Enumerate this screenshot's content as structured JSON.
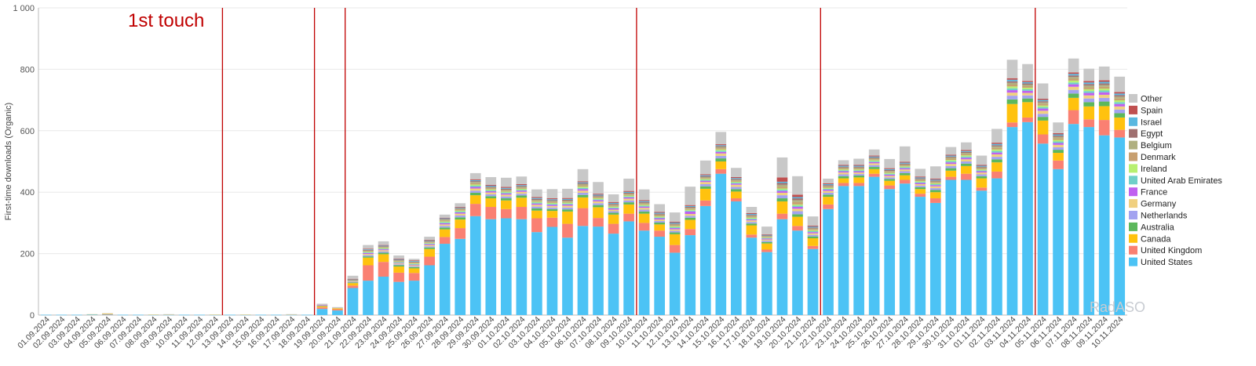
{
  "chart_data": {
    "type": "bar",
    "stacked": true,
    "ylabel": "First-time downloads (Organic)",
    "ylim": [
      0,
      1000
    ],
    "yticks": [
      "0",
      "200",
      "400",
      "600",
      "800",
      "1 000"
    ],
    "grid": true,
    "legend_position": "right",
    "annotation": "1st touch",
    "watermark": "RadASO",
    "event_markers": [
      "12.09.2024",
      "18.09.2024",
      "20.09.2024",
      "09.10.2024",
      "21.10.2024",
      "04.11.2024"
    ],
    "marker_color": "#c00000",
    "categories": [
      "01.09.2024",
      "02.09.2024",
      "03.09.2024",
      "04.09.2024",
      "05.09.2024",
      "06.09.2024",
      "07.09.2024",
      "08.09.2024",
      "09.09.2024",
      "10.09.2024",
      "11.09.2024",
      "12.09.2024",
      "13.09.2024",
      "14.09.2024",
      "15.09.2024",
      "16.09.2024",
      "17.09.2024",
      "18.09.2024",
      "19.09.2024",
      "20.09.2024",
      "21.09.2024",
      "22.09.2024",
      "23.09.2024",
      "24.09.2024",
      "25.09.2024",
      "26.09.2024",
      "27.09.2024",
      "28.09.2024",
      "29.09.2024",
      "30.09.2024",
      "01.10.2024",
      "02.10.2024",
      "03.10.2024",
      "04.10.2024",
      "05.10.2024",
      "06.10.2024",
      "07.10.2024",
      "08.10.2024",
      "09.10.2024",
      "10.10.2024",
      "11.10.2024",
      "12.10.2024",
      "13.10.2024",
      "14.10.2024",
      "15.10.2024",
      "16.10.2024",
      "17.10.2024",
      "18.10.2024",
      "19.10.2024",
      "20.10.2024",
      "21.10.2024",
      "22.10.2024",
      "23.10.2024",
      "24.10.2024",
      "25.10.2024",
      "26.10.2024",
      "27.10.2024",
      "28.10.2024",
      "29.10.2024",
      "30.10.2024",
      "31.10.2024",
      "01.11.2024",
      "02.11.2024",
      "03.11.2024",
      "04.11.2024",
      "05.11.2024",
      "06.11.2024",
      "07.11.2024",
      "08.11.2024",
      "09.11.2024",
      "10.11.2024"
    ],
    "series": [
      {
        "name": "United States",
        "color": "#4cc3f5",
        "values": [
          1,
          1,
          1,
          2,
          2,
          1,
          1,
          1,
          1,
          1,
          1,
          1,
          1,
          1,
          1,
          1,
          1,
          1,
          20,
          15,
          88,
          112,
          125,
          108,
          112,
          162,
          232,
          248,
          322,
          312,
          315,
          312,
          270,
          287,
          252,
          290,
          288,
          265,
          305,
          275,
          255,
          203,
          260,
          355,
          460,
          370,
          252,
          205,
          312,
          275,
          215,
          345,
          420,
          420,
          450,
          410,
          428,
          385,
          365,
          440,
          440,
          405,
          445,
          612,
          628,
          558,
          475,
          622,
          612,
          585,
          578
        ]
      },
      {
        "name": "United Kingdom",
        "color": "#fa8072",
        "values": [
          0,
          0,
          0,
          0,
          1,
          0,
          0,
          0,
          0,
          0,
          0,
          0,
          0,
          0,
          0,
          0,
          0,
          0,
          5,
          4,
          8,
          50,
          48,
          30,
          25,
          28,
          22,
          35,
          40,
          40,
          30,
          40,
          45,
          30,
          45,
          58,
          28,
          32,
          25,
          25,
          20,
          25,
          20,
          18,
          15,
          10,
          10,
          8,
          18,
          15,
          10,
          15,
          10,
          10,
          10,
          12,
          12,
          10,
          15,
          10,
          20,
          10,
          22,
          15,
          15,
          30,
          28,
          45,
          25,
          50,
          25
        ]
      },
      {
        "name": "Canada",
        "color": "#ffc20e",
        "values": [
          0,
          0,
          0,
          0,
          1,
          0,
          0,
          0,
          0,
          0,
          0,
          0,
          0,
          0,
          0,
          0,
          0,
          0,
          4,
          3,
          8,
          25,
          25,
          20,
          15,
          25,
          25,
          28,
          28,
          28,
          28,
          30,
          25,
          22,
          40,
          35,
          35,
          30,
          30,
          30,
          20,
          35,
          30,
          38,
          25,
          22,
          30,
          20,
          40,
          30,
          25,
          25,
          15,
          18,
          15,
          15,
          15,
          15,
          20,
          20,
          25,
          30,
          30,
          60,
          50,
          45,
          25,
          40,
          42,
          45,
          40
        ]
      },
      {
        "name": "Australia",
        "color": "#5cb85c",
        "values": [
          0,
          0,
          0,
          0,
          0,
          0,
          0,
          0,
          0,
          0,
          0,
          0,
          0,
          0,
          0,
          0,
          0,
          0,
          1,
          0,
          2,
          4,
          5,
          4,
          4,
          5,
          6,
          7,
          8,
          7,
          7,
          7,
          7,
          6,
          7,
          8,
          7,
          6,
          7,
          7,
          6,
          6,
          7,
          8,
          10,
          8,
          6,
          5,
          10,
          8,
          6,
          7,
          7,
          6,
          7,
          6,
          7,
          6,
          7,
          8,
          8,
          7,
          10,
          15,
          12,
          12,
          10,
          14,
          14,
          15,
          14
        ]
      },
      {
        "name": "Netherlands",
        "color": "#a3a3f0",
        "values": [
          0,
          0,
          0,
          0,
          0,
          0,
          0,
          0,
          0,
          0,
          0,
          0,
          0,
          0,
          0,
          0,
          0,
          0,
          1,
          0,
          2,
          4,
          4,
          3,
          3,
          4,
          5,
          6,
          7,
          6,
          6,
          6,
          6,
          5,
          6,
          7,
          6,
          5,
          6,
          6,
          5,
          5,
          6,
          7,
          8,
          7,
          5,
          4,
          10,
          10,
          5,
          6,
          6,
          5,
          6,
          5,
          6,
          5,
          6,
          7,
          7,
          6,
          8,
          12,
          10,
          10,
          8,
          12,
          12,
          12,
          12
        ]
      },
      {
        "name": "Germany",
        "color": "#f0d080",
        "values": [
          0,
          0,
          0,
          1,
          1,
          0,
          0,
          1,
          1,
          0,
          0,
          1,
          0,
          1,
          0,
          0,
          1,
          0,
          1,
          0,
          2,
          4,
          4,
          3,
          3,
          4,
          5,
          6,
          7,
          6,
          6,
          6,
          6,
          5,
          6,
          7,
          6,
          5,
          6,
          6,
          5,
          5,
          6,
          7,
          8,
          7,
          5,
          4,
          8,
          8,
          5,
          6,
          6,
          5,
          6,
          5,
          6,
          5,
          6,
          7,
          7,
          6,
          8,
          10,
          8,
          10,
          8,
          10,
          10,
          10,
          10
        ]
      },
      {
        "name": "France",
        "color": "#c060f0",
        "values": [
          0,
          0,
          0,
          0,
          0,
          0,
          0,
          0,
          0,
          0,
          0,
          0,
          0,
          0,
          0,
          0,
          0,
          0,
          1,
          0,
          1,
          3,
          3,
          2,
          2,
          3,
          4,
          4,
          5,
          4,
          4,
          4,
          4,
          4,
          4,
          5,
          4,
          4,
          4,
          4,
          4,
          4,
          8,
          4,
          5,
          4,
          3,
          3,
          6,
          6,
          4,
          4,
          4,
          4,
          4,
          4,
          4,
          4,
          4,
          5,
          5,
          4,
          6,
          8,
          7,
          7,
          6,
          8,
          8,
          8,
          8
        ]
      },
      {
        "name": "United Arab Emirates",
        "color": "#70cfc9",
        "values": [
          0,
          0,
          0,
          0,
          0,
          0,
          0,
          0,
          0,
          0,
          0,
          0,
          0,
          0,
          0,
          0,
          0,
          0,
          0,
          0,
          1,
          2,
          2,
          2,
          2,
          2,
          3,
          3,
          4,
          3,
          3,
          3,
          3,
          3,
          3,
          4,
          3,
          3,
          3,
          3,
          3,
          3,
          3,
          3,
          4,
          3,
          3,
          2,
          4,
          4,
          3,
          3,
          3,
          3,
          3,
          3,
          3,
          3,
          3,
          4,
          4,
          3,
          5,
          6,
          5,
          5,
          5,
          6,
          6,
          6,
          6
        ]
      },
      {
        "name": "Ireland",
        "color": "#b8f070",
        "values": [
          0,
          0,
          0,
          0,
          0,
          0,
          0,
          0,
          0,
          0,
          0,
          0,
          0,
          0,
          0,
          0,
          0,
          0,
          0,
          0,
          1,
          2,
          2,
          2,
          2,
          2,
          3,
          3,
          4,
          3,
          3,
          3,
          3,
          3,
          3,
          4,
          3,
          3,
          3,
          3,
          3,
          3,
          3,
          3,
          4,
          3,
          3,
          2,
          4,
          4,
          3,
          3,
          3,
          3,
          3,
          3,
          3,
          3,
          3,
          4,
          4,
          3,
          5,
          6,
          5,
          5,
          5,
          6,
          6,
          6,
          6
        ]
      },
      {
        "name": "Denmark",
        "color": "#c8a070",
        "values": [
          0,
          0,
          0,
          0,
          0,
          0,
          0,
          0,
          0,
          0,
          0,
          0,
          0,
          0,
          0,
          0,
          0,
          0,
          0,
          0,
          1,
          2,
          2,
          2,
          2,
          2,
          3,
          3,
          4,
          3,
          3,
          3,
          3,
          3,
          3,
          4,
          3,
          3,
          3,
          3,
          3,
          3,
          3,
          3,
          4,
          3,
          3,
          2,
          6,
          8,
          3,
          3,
          3,
          3,
          3,
          3,
          3,
          3,
          3,
          4,
          4,
          3,
          5,
          6,
          5,
          5,
          5,
          6,
          6,
          6,
          6
        ]
      },
      {
        "name": "Belgium",
        "color": "#b0b080",
        "values": [
          0,
          0,
          0,
          0,
          0,
          0,
          0,
          0,
          0,
          0,
          0,
          0,
          0,
          0,
          0,
          0,
          0,
          0,
          0,
          0,
          1,
          2,
          2,
          2,
          2,
          2,
          3,
          3,
          4,
          3,
          3,
          3,
          3,
          3,
          3,
          4,
          3,
          3,
          3,
          3,
          3,
          3,
          3,
          3,
          4,
          3,
          3,
          2,
          6,
          6,
          3,
          3,
          3,
          3,
          3,
          3,
          3,
          3,
          3,
          4,
          4,
          3,
          5,
          6,
          5,
          5,
          5,
          6,
          6,
          6,
          6
        ]
      },
      {
        "name": "Egypt",
        "color": "#a07070",
        "values": [
          0,
          0,
          0,
          0,
          0,
          0,
          0,
          0,
          0,
          0,
          0,
          0,
          0,
          0,
          0,
          0,
          0,
          0,
          0,
          0,
          1,
          2,
          2,
          2,
          2,
          2,
          2,
          2,
          3,
          3,
          3,
          3,
          3,
          3,
          3,
          3,
          3,
          3,
          3,
          3,
          3,
          3,
          3,
          3,
          3,
          3,
          3,
          2,
          6,
          6,
          3,
          3,
          3,
          3,
          3,
          3,
          3,
          3,
          3,
          3,
          3,
          3,
          4,
          5,
          4,
          4,
          4,
          5,
          5,
          5,
          5
        ]
      },
      {
        "name": "Israel",
        "color": "#5ab8e0",
        "values": [
          0,
          0,
          0,
          0,
          0,
          0,
          0,
          0,
          0,
          0,
          0,
          0,
          0,
          0,
          0,
          0,
          0,
          0,
          0,
          0,
          1,
          2,
          2,
          2,
          2,
          2,
          2,
          2,
          3,
          3,
          3,
          3,
          3,
          3,
          3,
          3,
          3,
          3,
          3,
          3,
          3,
          3,
          3,
          3,
          3,
          3,
          3,
          2,
          4,
          4,
          3,
          3,
          3,
          3,
          3,
          3,
          3,
          3,
          3,
          3,
          3,
          3,
          4,
          5,
          4,
          4,
          4,
          5,
          5,
          5,
          5
        ]
      },
      {
        "name": "Spain",
        "color": "#c05050",
        "values": [
          0,
          0,
          0,
          0,
          0,
          0,
          0,
          0,
          0,
          0,
          0,
          0,
          0,
          0,
          0,
          0,
          0,
          0,
          0,
          0,
          1,
          2,
          2,
          2,
          2,
          2,
          2,
          2,
          3,
          3,
          3,
          3,
          3,
          3,
          3,
          3,
          3,
          3,
          3,
          3,
          3,
          3,
          3,
          3,
          3,
          3,
          3,
          2,
          14,
          8,
          3,
          3,
          3,
          3,
          3,
          3,
          3,
          3,
          3,
          3,
          3,
          3,
          4,
          5,
          4,
          4,
          4,
          5,
          5,
          5,
          5
        ]
      },
      {
        "name": "Other",
        "color": "#c8c8c8",
        "values": [
          0,
          0,
          0,
          0,
          1,
          0,
          0,
          0,
          1,
          0,
          0,
          0,
          0,
          0,
          0,
          0,
          1,
          0,
          4,
          4,
          10,
          12,
          12,
          10,
          5,
          10,
          10,
          12,
          20,
          25,
          30,
          25,
          25,
          30,
          30,
          40,
          38,
          25,
          40,
          35,
          25,
          30,
          60,
          45,
          40,
          30,
          20,
          25,
          65,
          60,
          30,
          15,
          15,
          20,
          20,
          30,
          50,
          25,
          40,
          25,
          25,
          30,
          45,
          60,
          55,
          50,
          35,
          45,
          40,
          45,
          50
        ]
      }
    ]
  }
}
